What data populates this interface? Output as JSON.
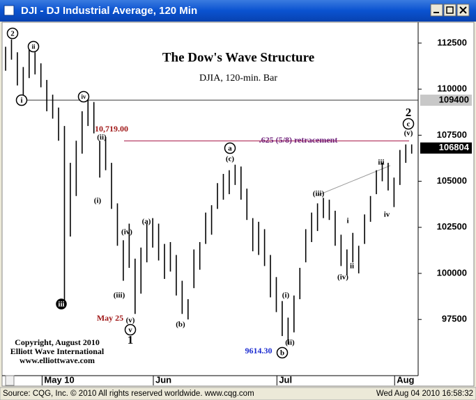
{
  "window_title": "DJI - DJ Industrial Average, 120 Min",
  "status_bar": {
    "source": "Source: CQG, Inc. © 2010 All rights reserved worldwide. www.cqg.com",
    "timestamp": "Wed Aug 04 2010 16:58:32"
  },
  "chart_data": {
    "type": "hlc",
    "title": "The Dow's Wave Structure",
    "subtitle": "DJIA, 120-min. Bar",
    "high": [
      112300,
      112700,
      112000,
      111200,
      112300,
      112000,
      111400,
      110500,
      109700,
      109000,
      108000,
      106000,
      107200,
      108800,
      109500,
      109300,
      107200,
      107400,
      106000,
      103800,
      101800,
      102700,
      100800,
      101400,
      102700,
      103000,
      102700,
      101600,
      101700,
      101000,
      99600,
      98600,
      101300,
      101700,
      103300,
      103700,
      104900,
      105400,
      105600,
      105900,
      105800,
      104600,
      103000,
      102800,
      102400,
      101000,
      99800,
      98500,
      97600,
      98800,
      100300,
      102400,
      103300,
      103800,
      104100,
      104000,
      103400,
      102100,
      101300,
      102200,
      101500,
      103200,
      104200,
      105600,
      106000,
      106000,
      105200,
      106700,
      107000,
      107000
    ],
    "low": [
      111000,
      111600,
      110200,
      109400,
      110600,
      110800,
      110100,
      108800,
      108400,
      107200,
      98200,
      102000,
      104200,
      106500,
      108000,
      107600,
      105200,
      105600,
      103500,
      101500,
      99600,
      100300,
      97800,
      98900,
      100600,
      101400,
      100700,
      99700,
      100100,
      98800,
      97800,
      97500,
      99200,
      100200,
      101600,
      102100,
      103500,
      104000,
      104300,
      104800,
      104000,
      102900,
      101200,
      101000,
      100400,
      98700,
      97900,
      96600,
      96140,
      96800,
      98600,
      100600,
      101700,
      102300,
      103000,
      102900,
      101500,
      100400,
      99900,
      100600,
      100000,
      101600,
      102800,
      104300,
      105000,
      104500,
      103600,
      104800,
      106000,
      106500
    ],
    "color": "#000000",
    "xlim": [
      -0.36,
      70.1
    ],
    "xticks": [
      {
        "value": 6.2,
        "label": "May 10"
      },
      {
        "value": 25.1,
        "label": "Jun"
      },
      {
        "value": 46.1,
        "label": "Jul"
      },
      {
        "value": 66.1,
        "label": "Aug"
      }
    ],
    "ylim": [
      94450,
      113630
    ],
    "yticks": [
      97500,
      100000,
      102500,
      105000,
      107500,
      110000,
      112500
    ],
    "reference_line": 109400,
    "last_price": 106804,
    "retracement_level": 107190,
    "grid": false,
    "annotations": [
      "2",
      "ii",
      "i",
      "iv",
      "iii",
      "(ii)",
      "(i)",
      "(iv)",
      "(iii)",
      "(v)",
      "v",
      "1",
      "(a)",
      "(b)",
      "(c)",
      "a",
      "b",
      "(ii)",
      "(i)",
      "(iii)",
      "(iv)",
      "i",
      "ii",
      "iii",
      "iv",
      "(v)",
      "c",
      "2"
    ],
    "notes": [
      "10,719.00",
      "May 25",
      "9614.30",
      ".625 (5/8) retracement"
    ],
    "copyright": [
      "Copyright, August 2010",
      "Elliott Wave International",
      "www.elliottwave.com"
    ]
  }
}
